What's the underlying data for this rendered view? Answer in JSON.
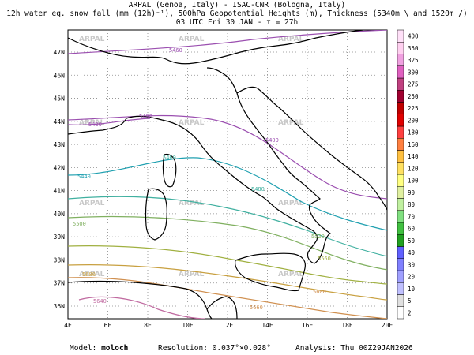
{
  "title": {
    "line1": "ARPAL (Genoa, Italy)  -  ISAC-CNR (Bologna, Italy)",
    "line2": "12h water eq. snow fall (mm (12h)⁻¹), 500hPa Geopotential Heights (m), Thickness (5340m \\ and 1520m /)",
    "line3": "03 UTC Fri 30 JAN  -  τ = 27h"
  },
  "watermark": "ARPAL",
  "map": {
    "lon_labels": [
      "4E",
      "6E",
      "8E",
      "10E",
      "12E",
      "14E",
      "16E",
      "18E",
      "20E"
    ],
    "lat_labels": [
      "36N",
      "37N",
      "38N",
      "39N",
      "40N",
      "41N",
      "42N",
      "43N",
      "44N",
      "45N",
      "46N",
      "47N"
    ],
    "contour_labels": [
      "5460",
      "5400",
      "5400",
      "5420",
      "5440",
      "5460",
      "5480",
      "5500",
      "5520",
      "5560",
      "5600",
      "5640",
      "5660",
      "5600"
    ]
  },
  "colorbar": {
    "levels": [
      "2",
      "5",
      "10",
      "20",
      "30",
      "40",
      "50",
      "60",
      "70",
      "80",
      "90",
      "100",
      "120",
      "140",
      "160",
      "180",
      "200",
      "225",
      "250",
      "275",
      "300",
      "325",
      "350",
      "400"
    ],
    "colors": [
      "#ffffff",
      "#e0e0e0",
      "#c0c0ff",
      "#a0a0ff",
      "#8080ff",
      "#6060ff",
      "#20a020",
      "#40c040",
      "#80e080",
      "#c0f0a0",
      "#e0f0a0",
      "#ffff80",
      "#ffe060",
      "#ffc040",
      "#ff8040",
      "#ff4040",
      "#e00000",
      "#c00000",
      "#a00030",
      "#c04080",
      "#e060c0",
      "#f0a0e0",
      "#ffd0f0",
      "#ffe0f8"
    ]
  },
  "footer": {
    "model_label": "Model:",
    "model": "moloch",
    "resolution": "Resolution: 0.037°×0.028°",
    "analysis": "Analysis: Thu 00Z29JAN2026"
  }
}
